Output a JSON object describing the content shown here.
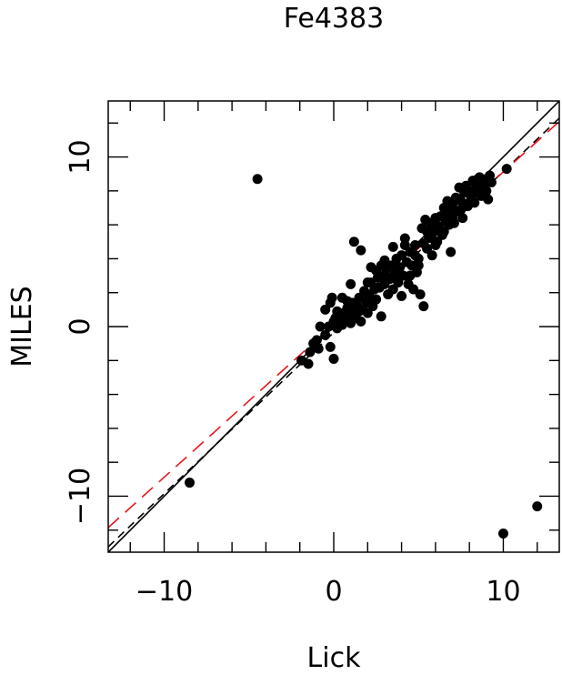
{
  "chart_data": {
    "type": "scatter",
    "title": "Fe4383",
    "xlabel": "Lick",
    "ylabel": "MILES",
    "xlim": [
      -13.3,
      13.3
    ],
    "ylim": [
      -13.3,
      13.3
    ],
    "grid": false,
    "x_ticks": [
      -10,
      0,
      10
    ],
    "y_ticks": [
      -10,
      0,
      10
    ],
    "x_tick_labels": [
      "−10",
      "0",
      "10"
    ],
    "y_tick_labels": [
      "−10",
      "0",
      "10"
    ],
    "lines": [
      {
        "name": "one-to-one",
        "style": "solid",
        "color": "#000000",
        "slope": 1.0,
        "intercept": 0.0
      },
      {
        "name": "fit-black",
        "style": "dashed",
        "color": "#000000",
        "slope": 0.95,
        "intercept": -0.35
      },
      {
        "name": "fit-red",
        "style": "dashed",
        "color": "#e8141c",
        "slope": 0.9,
        "intercept": 0.12
      }
    ],
    "points": [
      [
        -4.5,
        8.7
      ],
      [
        -8.5,
        -9.2
      ],
      [
        10.0,
        -12.2
      ],
      [
        12.0,
        -10.6
      ],
      [
        10.2,
        9.3
      ],
      [
        -1.9,
        -2.0
      ],
      [
        -1.5,
        -2.2
      ],
      [
        -1.4,
        -1.5
      ],
      [
        -1.2,
        -1.0
      ],
      [
        -1.0,
        -0.8
      ],
      [
        -0.9,
        -1.3
      ],
      [
        -0.5,
        -0.5
      ],
      [
        -0.3,
        0.0
      ],
      [
        -0.2,
        -1.2
      ],
      [
        -0.1,
        1.7
      ],
      [
        -0.5,
        1.0
      ],
      [
        0.0,
        -1.9
      ],
      [
        0.0,
        0.3
      ],
      [
        0.1,
        0.5
      ],
      [
        0.2,
        -0.1
      ],
      [
        0.3,
        0.2
      ],
      [
        0.4,
        0.6
      ],
      [
        0.5,
        0.1
      ],
      [
        0.6,
        0.8
      ],
      [
        0.7,
        0.4
      ],
      [
        0.8,
        1.1
      ],
      [
        0.9,
        0.6
      ],
      [
        1.0,
        0.2
      ],
      [
        1.1,
        1.4
      ],
      [
        1.2,
        0.9
      ],
      [
        1.3,
        0.5
      ],
      [
        1.4,
        1.2
      ],
      [
        1.5,
        1.7
      ],
      [
        1.6,
        0.3
      ],
      [
        1.7,
        1.0
      ],
      [
        1.8,
        2.1
      ],
      [
        1.9,
        1.5
      ],
      [
        2.0,
        0.8
      ],
      [
        2.1,
        1.8
      ],
      [
        2.2,
        2.6
      ],
      [
        2.3,
        1.2
      ],
      [
        2.4,
        2.2
      ],
      [
        2.5,
        1.6
      ],
      [
        2.6,
        2.9
      ],
      [
        2.7,
        2.3
      ],
      [
        2.8,
        0.6
      ],
      [
        2.9,
        3.0
      ],
      [
        3.0,
        2.5
      ],
      [
        3.1,
        3.4
      ],
      [
        3.2,
        1.9
      ],
      [
        3.3,
        2.8
      ],
      [
        3.4,
        3.6
      ],
      [
        3.5,
        2.2
      ],
      [
        3.6,
        3.1
      ],
      [
        3.7,
        4.0
      ],
      [
        3.8,
        2.6
      ],
      [
        3.9,
        3.5
      ],
      [
        4.0,
        4.2
      ],
      [
        4.1,
        3.0
      ],
      [
        4.2,
        5.2
      ],
      [
        4.3,
        3.8
      ],
      [
        4.4,
        2.5
      ],
      [
        4.5,
        4.4
      ],
      [
        4.6,
        3.6
      ],
      [
        4.7,
        2.2
      ],
      [
        4.8,
        4.8
      ],
      [
        4.9,
        3.2
      ],
      [
        5.0,
        4.0
      ],
      [
        5.1,
        1.9
      ],
      [
        5.2,
        5.8
      ],
      [
        5.3,
        1.2
      ],
      [
        5.4,
        6.3
      ],
      [
        5.5,
        4.6
      ],
      [
        5.6,
        5.3
      ],
      [
        5.7,
        6.1
      ],
      [
        5.8,
        4.2
      ],
      [
        5.9,
        5.6
      ],
      [
        6.0,
        6.4
      ],
      [
        6.1,
        5.0
      ],
      [
        6.2,
        5.9
      ],
      [
        6.3,
        6.5
      ],
      [
        6.4,
        5.4
      ],
      [
        6.5,
        7.0
      ],
      [
        6.6,
        6.2
      ],
      [
        6.7,
        7.4
      ],
      [
        6.8,
        6.7
      ],
      [
        6.9,
        4.4
      ],
      [
        7.0,
        7.2
      ],
      [
        7.1,
        6.1
      ],
      [
        7.2,
        7.6
      ],
      [
        7.3,
        6.8
      ],
      [
        7.4,
        8.2
      ],
      [
        7.5,
        7.4
      ],
      [
        7.6,
        6.4
      ],
      [
        7.7,
        7.9
      ],
      [
        7.8,
        8.3
      ],
      [
        7.9,
        7.1
      ],
      [
        8.0,
        8.0
      ],
      [
        8.1,
        7.6
      ],
      [
        8.2,
        8.6
      ],
      [
        8.3,
        7.3
      ],
      [
        8.4,
        8.3
      ],
      [
        8.5,
        7.9
      ],
      [
        8.6,
        8.8
      ],
      [
        8.7,
        7.7
      ],
      [
        8.8,
        8.4
      ],
      [
        8.9,
        8.1
      ],
      [
        9.0,
        8.7
      ],
      [
        9.1,
        7.5
      ],
      [
        9.2,
        8.9
      ],
      [
        9.3,
        8.5
      ],
      [
        1.2,
        5.0
      ],
      [
        1.6,
        4.5
      ],
      [
        -0.2,
        1.4
      ],
      [
        -0.8,
        0.0
      ],
      [
        2.0,
        2.6
      ],
      [
        3.0,
        3.9
      ],
      [
        3.5,
        4.7
      ],
      [
        4.0,
        1.8
      ],
      [
        2.5,
        3.3
      ],
      [
        1.0,
        2.5
      ],
      [
        0.5,
        1.7
      ],
      [
        5.5,
        5.6
      ],
      [
        6.0,
        4.8
      ],
      [
        6.8,
        6.0
      ],
      [
        7.5,
        6.9
      ],
      [
        8.0,
        7.3
      ],
      [
        2.2,
        3.5
      ],
      [
        2.8,
        3.6
      ],
      [
        3.2,
        2.9
      ],
      [
        3.8,
        3.2
      ],
      [
        4.5,
        3.0
      ],
      [
        5.0,
        3.6
      ],
      [
        5.8,
        5.2
      ],
      [
        6.5,
        5.6
      ],
      [
        7.0,
        6.4
      ],
      [
        8.5,
        8.7
      ],
      [
        9.0,
        8.0
      ],
      [
        0.2,
        0.9
      ],
      [
        0.8,
        1.5
      ],
      [
        1.5,
        0.9
      ],
      [
        2.0,
        1.4
      ],
      [
        4.2,
        4.8
      ],
      [
        4.8,
        4.2
      ],
      [
        5.3,
        4.9
      ]
    ]
  }
}
